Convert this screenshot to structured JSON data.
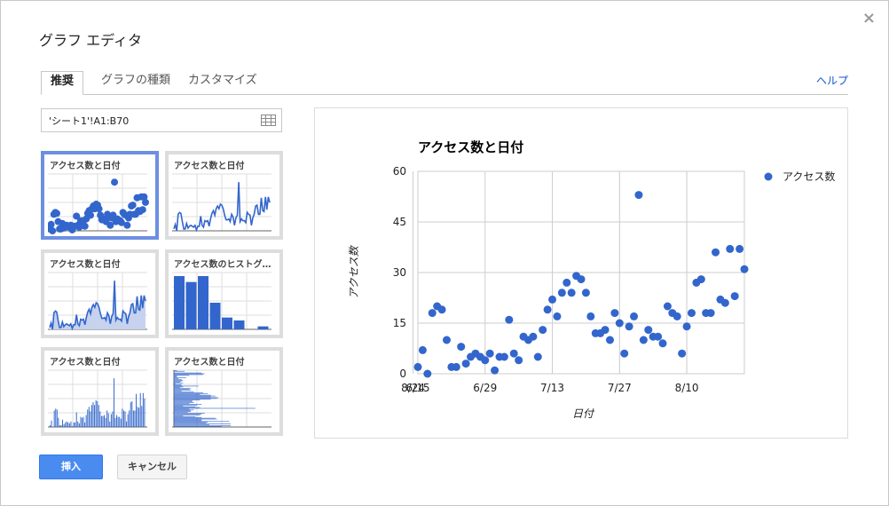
{
  "dialog": {
    "title": "グラフ エディタ",
    "close_glyph": "×"
  },
  "tabs": [
    {
      "label": "推奨",
      "active": true
    },
    {
      "label": "グラフの種類",
      "active": false
    },
    {
      "label": "カスタマイズ",
      "active": false
    }
  ],
  "help_label": "ヘルプ",
  "data_range": {
    "value": "'シート1'!A1:B70"
  },
  "thumbnails": [
    {
      "title": "アクセス数と日付",
      "kind": "scatter",
      "selected": true
    },
    {
      "title": "アクセス数と日付",
      "kind": "line",
      "selected": false
    },
    {
      "title": "アクセス数と日付",
      "kind": "area",
      "selected": false
    },
    {
      "title": "アクセス数のヒストグ…",
      "kind": "histogram",
      "selected": false
    },
    {
      "title": "アクセス数と日付",
      "kind": "column",
      "selected": false
    },
    {
      "title": "アクセス数と日付",
      "kind": "bar",
      "selected": false
    }
  ],
  "buttons": {
    "insert": "挿入",
    "cancel": "キャンセル"
  },
  "colors": {
    "accent": "#3366cc",
    "insert_button": "#4a8bf0",
    "link": "#1155cc",
    "selected_border": "#6d8fe2"
  },
  "chart_data": {
    "type": "scatter",
    "title": "アクセス数と日付",
    "xlabel": "日付",
    "ylabel": "アクセス数",
    "x_ticks": [
      "6/15",
      "6/29",
      "7/13",
      "7/27",
      "8/10",
      "8/24"
    ],
    "y_ticks": [
      0,
      15,
      30,
      45,
      60
    ],
    "ylim": [
      0,
      60
    ],
    "grid": true,
    "legend": "right",
    "series": [
      {
        "name": "アクセス数",
        "color": "#3366cc",
        "points": [
          {
            "x": "6/15",
            "y": 2
          },
          {
            "x": "6/16",
            "y": 7
          },
          {
            "x": "6/17",
            "y": 0
          },
          {
            "x": "6/18",
            "y": 18
          },
          {
            "x": "6/19",
            "y": 20
          },
          {
            "x": "6/20",
            "y": 19
          },
          {
            "x": "6/21",
            "y": 10
          },
          {
            "x": "6/22",
            "y": 2
          },
          {
            "x": "6/23",
            "y": 2
          },
          {
            "x": "6/24",
            "y": 8
          },
          {
            "x": "6/25",
            "y": 3
          },
          {
            "x": "6/26",
            "y": 5
          },
          {
            "x": "6/27",
            "y": 6
          },
          {
            "x": "6/28",
            "y": 5
          },
          {
            "x": "6/29",
            "y": 4
          },
          {
            "x": "6/30",
            "y": 6
          },
          {
            "x": "7/1",
            "y": 1
          },
          {
            "x": "7/2",
            "y": 5
          },
          {
            "x": "7/3",
            "y": 5
          },
          {
            "x": "7/4",
            "y": 16
          },
          {
            "x": "7/5",
            "y": 6
          },
          {
            "x": "7/6",
            "y": 4
          },
          {
            "x": "7/7",
            "y": 11
          },
          {
            "x": "7/8",
            "y": 10
          },
          {
            "x": "7/9",
            "y": 11
          },
          {
            "x": "7/10",
            "y": 5
          },
          {
            "x": "7/11",
            "y": 13
          },
          {
            "x": "7/12",
            "y": 19
          },
          {
            "x": "7/13",
            "y": 22
          },
          {
            "x": "7/14",
            "y": 17
          },
          {
            "x": "7/15",
            "y": 24
          },
          {
            "x": "7/16",
            "y": 27
          },
          {
            "x": "7/17",
            "y": 24
          },
          {
            "x": "7/18",
            "y": 29
          },
          {
            "x": "7/19",
            "y": 28
          },
          {
            "x": "7/20",
            "y": 24
          },
          {
            "x": "7/21",
            "y": 17
          },
          {
            "x": "7/22",
            "y": 12
          },
          {
            "x": "7/23",
            "y": 12
          },
          {
            "x": "7/24",
            "y": 13
          },
          {
            "x": "7/25",
            "y": 10
          },
          {
            "x": "7/26",
            "y": 18
          },
          {
            "x": "7/27",
            "y": 15
          },
          {
            "x": "7/28",
            "y": 6
          },
          {
            "x": "7/29",
            "y": 14
          },
          {
            "x": "7/30",
            "y": 17
          },
          {
            "x": "7/31",
            "y": 53
          },
          {
            "x": "8/1",
            "y": 10
          },
          {
            "x": "8/2",
            "y": 13
          },
          {
            "x": "8/3",
            "y": 11
          },
          {
            "x": "8/4",
            "y": 11
          },
          {
            "x": "8/5",
            "y": 9
          },
          {
            "x": "8/6",
            "y": 20
          },
          {
            "x": "8/7",
            "y": 18
          },
          {
            "x": "8/8",
            "y": 17
          },
          {
            "x": "8/9",
            "y": 6
          },
          {
            "x": "8/10",
            "y": 14
          },
          {
            "x": "8/11",
            "y": 18
          },
          {
            "x": "8/12",
            "y": 27
          },
          {
            "x": "8/13",
            "y": 28
          },
          {
            "x": "8/14",
            "y": 18
          },
          {
            "x": "8/15",
            "y": 18
          },
          {
            "x": "8/16",
            "y": 36
          },
          {
            "x": "8/17",
            "y": 22
          },
          {
            "x": "8/18",
            "y": 21
          },
          {
            "x": "8/19",
            "y": 37
          },
          {
            "x": "8/20",
            "y": 23
          },
          {
            "x": "8/21",
            "y": 37
          },
          {
            "x": "8/22",
            "y": 31
          }
        ]
      }
    ]
  }
}
